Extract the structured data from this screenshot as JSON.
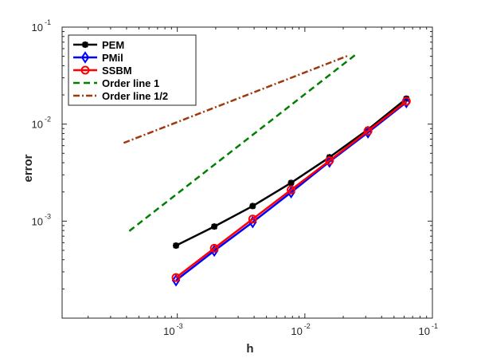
{
  "chart_data": {
    "type": "line",
    "xlabel": "h",
    "ylabel": "error",
    "xscale": "log",
    "yscale": "log",
    "xlim": [
      0.000125,
      0.1
    ],
    "ylim": [
      0.0001,
      0.1
    ],
    "x_ticks": [
      {
        "value": 0.001,
        "base": "10",
        "exp": "-3"
      },
      {
        "value": 0.01,
        "base": "10",
        "exp": "-2"
      },
      {
        "value": 0.1,
        "base": "10",
        "exp": "-1"
      }
    ],
    "y_ticks": [
      {
        "value": 0.001,
        "base": "10",
        "exp": "-3"
      },
      {
        "value": 0.01,
        "base": "10",
        "exp": "-2"
      },
      {
        "value": 0.1,
        "base": "10",
        "exp": "-1"
      }
    ],
    "grid": false,
    "legend_position": "top-left",
    "series": [
      {
        "name": "PEM",
        "color": "#000000",
        "style": "solid",
        "marker": "star",
        "x": [
          0.000977,
          0.00195,
          0.0039,
          0.0078,
          0.0156,
          0.03125,
          0.0625
        ],
        "y": [
          0.00056,
          0.00088,
          0.00143,
          0.00248,
          0.00455,
          0.0088,
          0.0183
        ]
      },
      {
        "name": "PMil",
        "color": "#0000ff",
        "style": "solid",
        "marker": "diamond",
        "x": [
          0.000977,
          0.00195,
          0.0039,
          0.0078,
          0.0156,
          0.03125,
          0.0625
        ],
        "y": [
          0.000245,
          0.000495,
          0.000975,
          0.00198,
          0.0041,
          0.0082,
          0.0168
        ]
      },
      {
        "name": "SSBM",
        "color": "#ff0000",
        "style": "solid",
        "marker": "circle",
        "x": [
          0.000977,
          0.00195,
          0.0039,
          0.0078,
          0.0156,
          0.03125,
          0.0625
        ],
        "y": [
          0.000262,
          0.000525,
          0.00105,
          0.0021,
          0.0042,
          0.0085,
          0.0172
        ]
      },
      {
        "name": "Order line 1",
        "color": "#008000",
        "style": "dashed",
        "marker": "none",
        "x": [
          0.00042,
          0.025
        ],
        "y": [
          0.00079,
          0.052
        ]
      },
      {
        "name": "Order line 1/2",
        "color": "#a0380c",
        "style": "dashdot",
        "marker": "none",
        "x": [
          0.00038,
          0.022
        ],
        "y": [
          0.0064,
          0.051
        ]
      }
    ]
  }
}
